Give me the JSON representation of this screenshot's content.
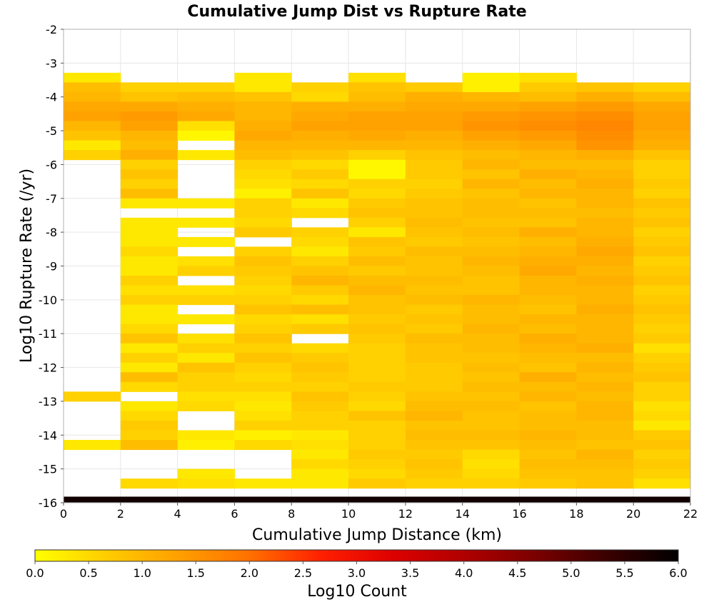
{
  "chart_data": {
    "type": "heatmap",
    "title": "Cumulative Jump Dist vs Rupture Rate",
    "xlabel": "Cumulative Jump Distance (km)",
    "ylabel": "Log10 Rupture Rate (/yr)",
    "xlim": [
      0,
      22
    ],
    "ylim": [
      -16,
      -2
    ],
    "x_ticks": [
      "0",
      "2",
      "4",
      "6",
      "8",
      "10",
      "12",
      "14",
      "16",
      "18",
      "20",
      "22"
    ],
    "y_ticks": [
      "-2",
      "-3",
      "-4",
      "-5",
      "-6",
      "-7",
      "-8",
      "-9",
      "-10",
      "-11",
      "-12",
      "-13",
      "-14",
      "-15",
      "-16"
    ],
    "x_bin_edges": [
      0,
      2,
      4,
      6,
      8,
      10,
      12,
      14,
      16,
      18,
      20,
      22
    ],
    "y_bin_size": 0.2857,
    "y_bin_top": -3.2857,
    "grid": true,
    "colorbar": {
      "label": "Log10 Count",
      "min": 0.0,
      "max": 6.0,
      "ticks": [
        "0.0",
        "0.5",
        "1.0",
        "1.5",
        "2.0",
        "2.5",
        "3.0",
        "3.5",
        "4.0",
        "4.5",
        "5.0",
        "5.5",
        "6.0"
      ],
      "colors": [
        "#ffff00",
        "#ffcc00",
        "#ffa000",
        "#ff7000",
        "#ff2000",
        "#dd0000",
        "#b00000",
        "#7a0000",
        "#3a0000",
        "#000000"
      ]
    },
    "bottom_row_value": 5.8,
    "columns": [
      {
        "x": "0-2",
        "values": [
          0.3,
          0.9,
          1.0,
          1.2,
          1.3,
          1.0,
          0.8,
          0.3,
          0.6,
          null,
          null,
          null,
          null,
          null,
          null,
          null,
          null,
          null,
          null,
          null,
          null,
          null,
          null,
          null,
          null,
          null,
          null,
          null,
          null,
          null,
          null,
          null,
          null,
          0.6,
          null,
          null,
          null,
          null,
          0.3,
          null,
          null,
          null,
          null,
          null,
          null
        ]
      },
      {
        "x": "2-4",
        "values": [
          null,
          0.6,
          0.8,
          1.2,
          1.4,
          1.3,
          1.0,
          0.9,
          1.1,
          0.6,
          0.8,
          0.6,
          0.9,
          0.3,
          null,
          0.3,
          0.3,
          0.3,
          0.5,
          0.3,
          0.3,
          0.6,
          0.4,
          0.6,
          0.3,
          0.3,
          0.5,
          0.8,
          0.3,
          0.6,
          0.3,
          0.9,
          0.5,
          null,
          0.3,
          0.5,
          0.7,
          0.6,
          0.9,
          null,
          null,
          null,
          0.5,
          null,
          null
        ]
      },
      {
        "x": "4-6",
        "values": [
          null,
          0.6,
          0.9,
          1.1,
          1.2,
          0.4,
          0.1,
          null,
          0.3,
          null,
          null,
          null,
          null,
          0.3,
          null,
          0.3,
          null,
          0.3,
          null,
          0.4,
          0.6,
          null,
          0.4,
          0.6,
          null,
          0.3,
          null,
          0.4,
          0.6,
          0.3,
          0.8,
          0.6,
          0.6,
          0.4,
          0.5,
          null,
          null,
          0.3,
          0.2,
          null,
          null,
          0.3,
          0.4,
          null,
          null
        ]
      },
      {
        "x": "6-8",
        "values": [
          0.3,
          0.3,
          0.8,
          1.0,
          1.0,
          1.1,
          1.2,
          1.0,
          0.9,
          0.6,
          0.5,
          0.4,
          0.2,
          0.6,
          0.6,
          0.5,
          0.7,
          null,
          0.6,
          0.8,
          0.7,
          0.6,
          0.5,
          0.6,
          0.8,
          0.5,
          0.6,
          0.8,
          0.6,
          0.8,
          0.6,
          0.5,
          0.6,
          0.4,
          0.3,
          0.4,
          0.6,
          0.2,
          0.5,
          null,
          null,
          null,
          0.3,
          null,
          null
        ]
      },
      {
        "x": "8-10",
        "values": [
          null,
          0.6,
          0.5,
          1.1,
          1.2,
          1.3,
          1.1,
          1.0,
          0.8,
          0.5,
          0.7,
          0.5,
          0.8,
          0.3,
          0.5,
          null,
          0.6,
          0.5,
          0.3,
          0.6,
          0.8,
          1.0,
          0.7,
          0.5,
          0.9,
          0.4,
          0.7,
          null,
          0.5,
          0.7,
          0.8,
          0.7,
          0.6,
          0.8,
          0.7,
          0.6,
          0.6,
          0.3,
          0.4,
          0.3,
          0.5,
          0.3,
          0.3,
          null,
          null
        ]
      },
      {
        "x": "10-12",
        "values": [
          0.4,
          0.8,
          0.9,
          1.1,
          1.3,
          1.3,
          1.2,
          1.0,
          0.6,
          0.1,
          0.1,
          0.6,
          0.5,
          0.7,
          0.8,
          0.6,
          0.3,
          0.8,
          0.7,
          0.9,
          0.7,
          0.9,
          1.0,
          0.8,
          0.8,
          0.7,
          0.8,
          0.7,
          0.6,
          0.6,
          0.6,
          0.6,
          0.7,
          0.6,
          0.5,
          0.8,
          0.6,
          0.6,
          0.6,
          0.7,
          0.6,
          0.5,
          0.7,
          null,
          null
        ]
      },
      {
        "x": "12-14",
        "values": [
          null,
          0.7,
          1.1,
          1.2,
          1.3,
          1.3,
          1.1,
          1.0,
          0.8,
          0.7,
          0.7,
          0.6,
          0.7,
          0.8,
          0.8,
          0.9,
          0.8,
          0.7,
          0.9,
          0.8,
          0.8,
          0.9,
          0.8,
          0.9,
          0.7,
          0.8,
          0.7,
          0.9,
          0.8,
          0.8,
          0.7,
          0.7,
          0.7,
          0.8,
          0.9,
          1.0,
          0.8,
          0.9,
          0.8,
          0.7,
          0.8,
          0.7,
          0.6,
          null,
          null
        ]
      },
      {
        "x": "14-16",
        "values": [
          0.2,
          0.2,
          1.0,
          1.2,
          1.4,
          1.5,
          1.3,
          1.1,
          0.9,
          1.0,
          0.8,
          1.0,
          0.8,
          0.9,
          0.9,
          0.8,
          0.9,
          0.8,
          0.9,
          1.0,
          0.9,
          0.8,
          0.8,
          1.0,
          0.9,
          0.9,
          1.0,
          0.9,
          0.9,
          0.8,
          0.9,
          0.8,
          0.9,
          0.8,
          0.9,
          0.8,
          0.8,
          0.9,
          0.8,
          0.5,
          0.4,
          0.5,
          0.6,
          null,
          null
        ]
      },
      {
        "x": "16-18",
        "values": [
          0.4,
          0.7,
          0.9,
          1.3,
          1.5,
          1.6,
          1.4,
          1.2,
          1.0,
          0.9,
          1.1,
          0.9,
          1.0,
          0.8,
          0.9,
          0.8,
          1.1,
          0.9,
          1.0,
          1.1,
          1.2,
          1.0,
          1.0,
          0.9,
          0.8,
          1.0,
          0.9,
          1.1,
          1.0,
          0.9,
          0.8,
          1.1,
          0.9,
          1.0,
          0.8,
          0.9,
          0.9,
          1.0,
          0.9,
          0.8,
          0.9,
          0.8,
          0.7,
          null,
          null
        ]
      },
      {
        "x": "18-20",
        "values": [
          null,
          0.8,
          1.1,
          1.4,
          1.6,
          1.7,
          1.6,
          1.5,
          1.1,
          0.9,
          1.0,
          1.1,
          1.0,
          1.0,
          0.9,
          1.0,
          1.0,
          1.1,
          1.2,
          1.1,
          1.0,
          1.1,
          1.0,
          1.0,
          1.1,
          1.0,
          1.0,
          1.0,
          1.1,
          0.9,
          1.0,
          0.9,
          1.0,
          0.9,
          1.0,
          1.0,
          0.9,
          0.9,
          0.8,
          1.0,
          0.9,
          0.8,
          0.8,
          null,
          null
        ]
      },
      {
        "x": "20-22",
        "values": [
          null,
          0.6,
          0.9,
          1.2,
          1.3,
          1.3,
          1.2,
          1.1,
          0.8,
          0.6,
          0.6,
          0.7,
          0.6,
          0.8,
          0.7,
          0.8,
          0.6,
          0.7,
          0.8,
          0.6,
          0.7,
          0.8,
          0.6,
          0.7,
          0.8,
          0.7,
          0.6,
          0.7,
          0.4,
          0.6,
          0.7,
          0.8,
          0.6,
          0.6,
          0.4,
          0.5,
          0.3,
          0.7,
          0.8,
          0.6,
          0.7,
          0.6,
          0.4,
          null,
          null
        ]
      }
    ]
  }
}
